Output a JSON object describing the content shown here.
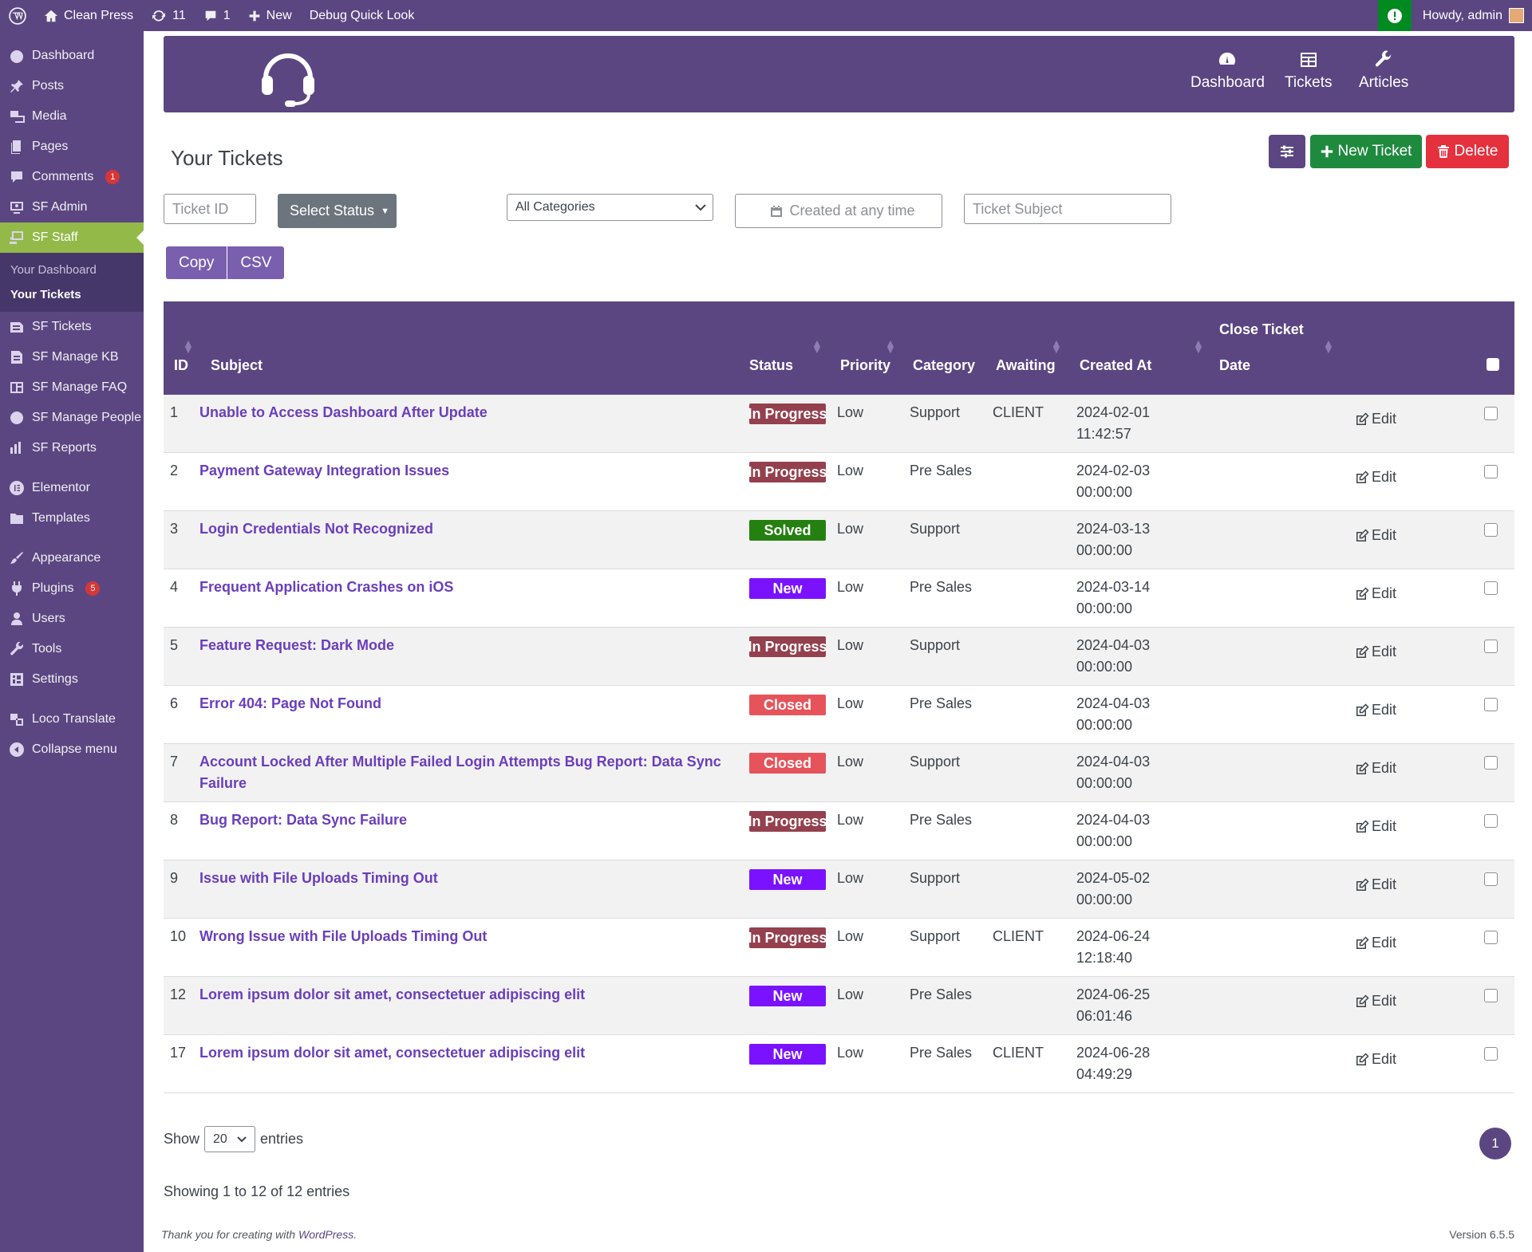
{
  "adminbar": {
    "site_name": "Clean Press",
    "updates": "11",
    "comments": "1",
    "new_label": "New",
    "debug_label": "Debug Quick Look",
    "howdy": "Howdy, admin"
  },
  "sidebar": {
    "items": [
      {
        "label": "Dashboard",
        "icon": "dashboard-icon"
      },
      {
        "label": "Posts",
        "icon": "pin-icon"
      },
      {
        "label": "Media",
        "icon": "media-icon"
      },
      {
        "label": "Pages",
        "icon": "pages-icon"
      },
      {
        "label": "Comments",
        "icon": "comment-icon",
        "badge": "1"
      },
      {
        "label": "SF Admin",
        "icon": "admin-icon"
      },
      {
        "label": "SF Staff",
        "icon": "staff-icon",
        "active": true
      }
    ],
    "submenu": [
      "Your Dashboard",
      "Your Tickets"
    ],
    "items2": [
      {
        "label": "SF Tickets",
        "icon": "tickets-icon"
      },
      {
        "label": "SF Manage KB",
        "icon": "kb-icon"
      },
      {
        "label": "SF Manage FAQ",
        "icon": "faq-icon"
      },
      {
        "label": "SF Manage People",
        "icon": "people-icon"
      },
      {
        "label": "SF Reports",
        "icon": "reports-icon"
      }
    ],
    "items3": [
      {
        "label": "Elementor",
        "icon": "elementor-icon"
      },
      {
        "label": "Templates",
        "icon": "folder-icon"
      }
    ],
    "items4": [
      {
        "label": "Appearance",
        "icon": "brush-icon"
      },
      {
        "label": "Plugins",
        "icon": "plugin-icon",
        "badge": "5"
      },
      {
        "label": "Users",
        "icon": "user-icon"
      },
      {
        "label": "Tools",
        "icon": "wrench-icon"
      },
      {
        "label": "Settings",
        "icon": "settings-icon"
      }
    ],
    "items5": [
      {
        "label": "Loco Translate",
        "icon": "translate-icon"
      },
      {
        "label": "Collapse menu",
        "icon": "collapse-icon"
      }
    ]
  },
  "hero": {
    "nav": [
      {
        "label": "Dashboard",
        "icon": "gauge-icon"
      },
      {
        "label": "Tickets",
        "icon": "list-icon"
      },
      {
        "label": "Articles",
        "icon": "wrench-icon"
      }
    ]
  },
  "page": {
    "title": "Your Tickets",
    "new_ticket": "New Ticket",
    "delete": "Delete"
  },
  "filters": {
    "ticket_id": "Ticket ID",
    "status": "Select Status",
    "category": "All Categories",
    "created": "Created at any time",
    "subject": "Ticket Subject"
  },
  "exports": [
    "Copy",
    "CSV"
  ],
  "table": {
    "headers": {
      "id": "ID",
      "subject": "Subject",
      "status": "Status",
      "priority": "Priority",
      "category": "Category",
      "awaiting": "Awaiting",
      "created": "Created At",
      "close1": "Close Ticket",
      "close2": "Date"
    },
    "edit_label": "Edit",
    "rows": [
      {
        "id": "1",
        "subject": "Unable to Access Dashboard After Update",
        "status": "In Progress",
        "priority": "Low",
        "category": "Support",
        "awaiting": "CLIENT",
        "date": "2024-02-01",
        "time": "11:42:57"
      },
      {
        "id": "2",
        "subject": "Payment Gateway Integration Issues",
        "status": "In Progress",
        "priority": "Low",
        "category": "Pre Sales",
        "awaiting": "",
        "date": "2024-02-03",
        "time": "00:00:00"
      },
      {
        "id": "3",
        "subject": "Login Credentials Not Recognized",
        "status": "Solved",
        "priority": "Low",
        "category": "Support",
        "awaiting": "",
        "date": "2024-03-13",
        "time": "00:00:00"
      },
      {
        "id": "4",
        "subject": "Frequent Application Crashes on iOS",
        "status": "New",
        "priority": "Low",
        "category": "Pre Sales",
        "awaiting": "",
        "date": "2024-03-14",
        "time": "00:00:00"
      },
      {
        "id": "5",
        "subject": "Feature Request: Dark Mode",
        "status": "In Progress",
        "priority": "Low",
        "category": "Support",
        "awaiting": "",
        "date": "2024-04-03",
        "time": "00:00:00"
      },
      {
        "id": "6",
        "subject": "Error 404: Page Not Found",
        "status": "Closed",
        "priority": "Low",
        "category": "Pre Sales",
        "awaiting": "",
        "date": "2024-04-03",
        "time": "00:00:00"
      },
      {
        "id": "7",
        "subject": "Account Locked After Multiple Failed Login Attempts Bug Report: Data Sync Failure",
        "status": "Closed",
        "priority": "Low",
        "category": "Support",
        "awaiting": "",
        "date": "2024-04-03",
        "time": "00:00:00"
      },
      {
        "id": "8",
        "subject": "Bug Report: Data Sync Failure",
        "status": "In Progress",
        "priority": "Low",
        "category": "Pre Sales",
        "awaiting": "",
        "date": "2024-04-03",
        "time": "00:00:00"
      },
      {
        "id": "9",
        "subject": "Issue with File Uploads Timing Out",
        "status": "New",
        "priority": "Low",
        "category": "Support",
        "awaiting": "",
        "date": "2024-05-02",
        "time": "00:00:00"
      },
      {
        "id": "10",
        "subject": "Wrong Issue with File Uploads Timing Out",
        "status": "In Progress",
        "priority": "Low",
        "category": "Support",
        "awaiting": "CLIENT",
        "date": "2024-06-24",
        "time": "12:18:40"
      },
      {
        "id": "12",
        "subject": "Lorem ipsum dolor sit amet, consectetuer adipiscing elit",
        "status": "New",
        "priority": "Low",
        "category": "Pre Sales",
        "awaiting": "",
        "date": "2024-06-25",
        "time": "06:01:46"
      },
      {
        "id": "17",
        "subject": "Lorem ipsum dolor sit amet, consectetuer adipiscing elit",
        "status": "New",
        "priority": "Low",
        "category": "Pre Sales",
        "awaiting": "CLIENT",
        "date": "2024-06-28",
        "time": "04:49:29"
      }
    ]
  },
  "pagination": {
    "show": "Show",
    "page_size": "20",
    "entries": "entries",
    "page": "1",
    "info": "Showing 1 to 12 of 12 entries"
  },
  "footer": {
    "thanks_prefix": "Thank you for creating with ",
    "wp_link": "WordPress",
    "thanks_suffix": ".",
    "version": "Version 6.5.5"
  },
  "colors": {
    "brand_purple": "#5b4682",
    "active_green": "#93b949",
    "new_ticket": "#1e8a3e",
    "delete": "#e5303e",
    "status_in_progress": "#94404e",
    "status_solved": "#24800f",
    "status_new": "#7a12ff",
    "status_closed": "#e7535a"
  }
}
